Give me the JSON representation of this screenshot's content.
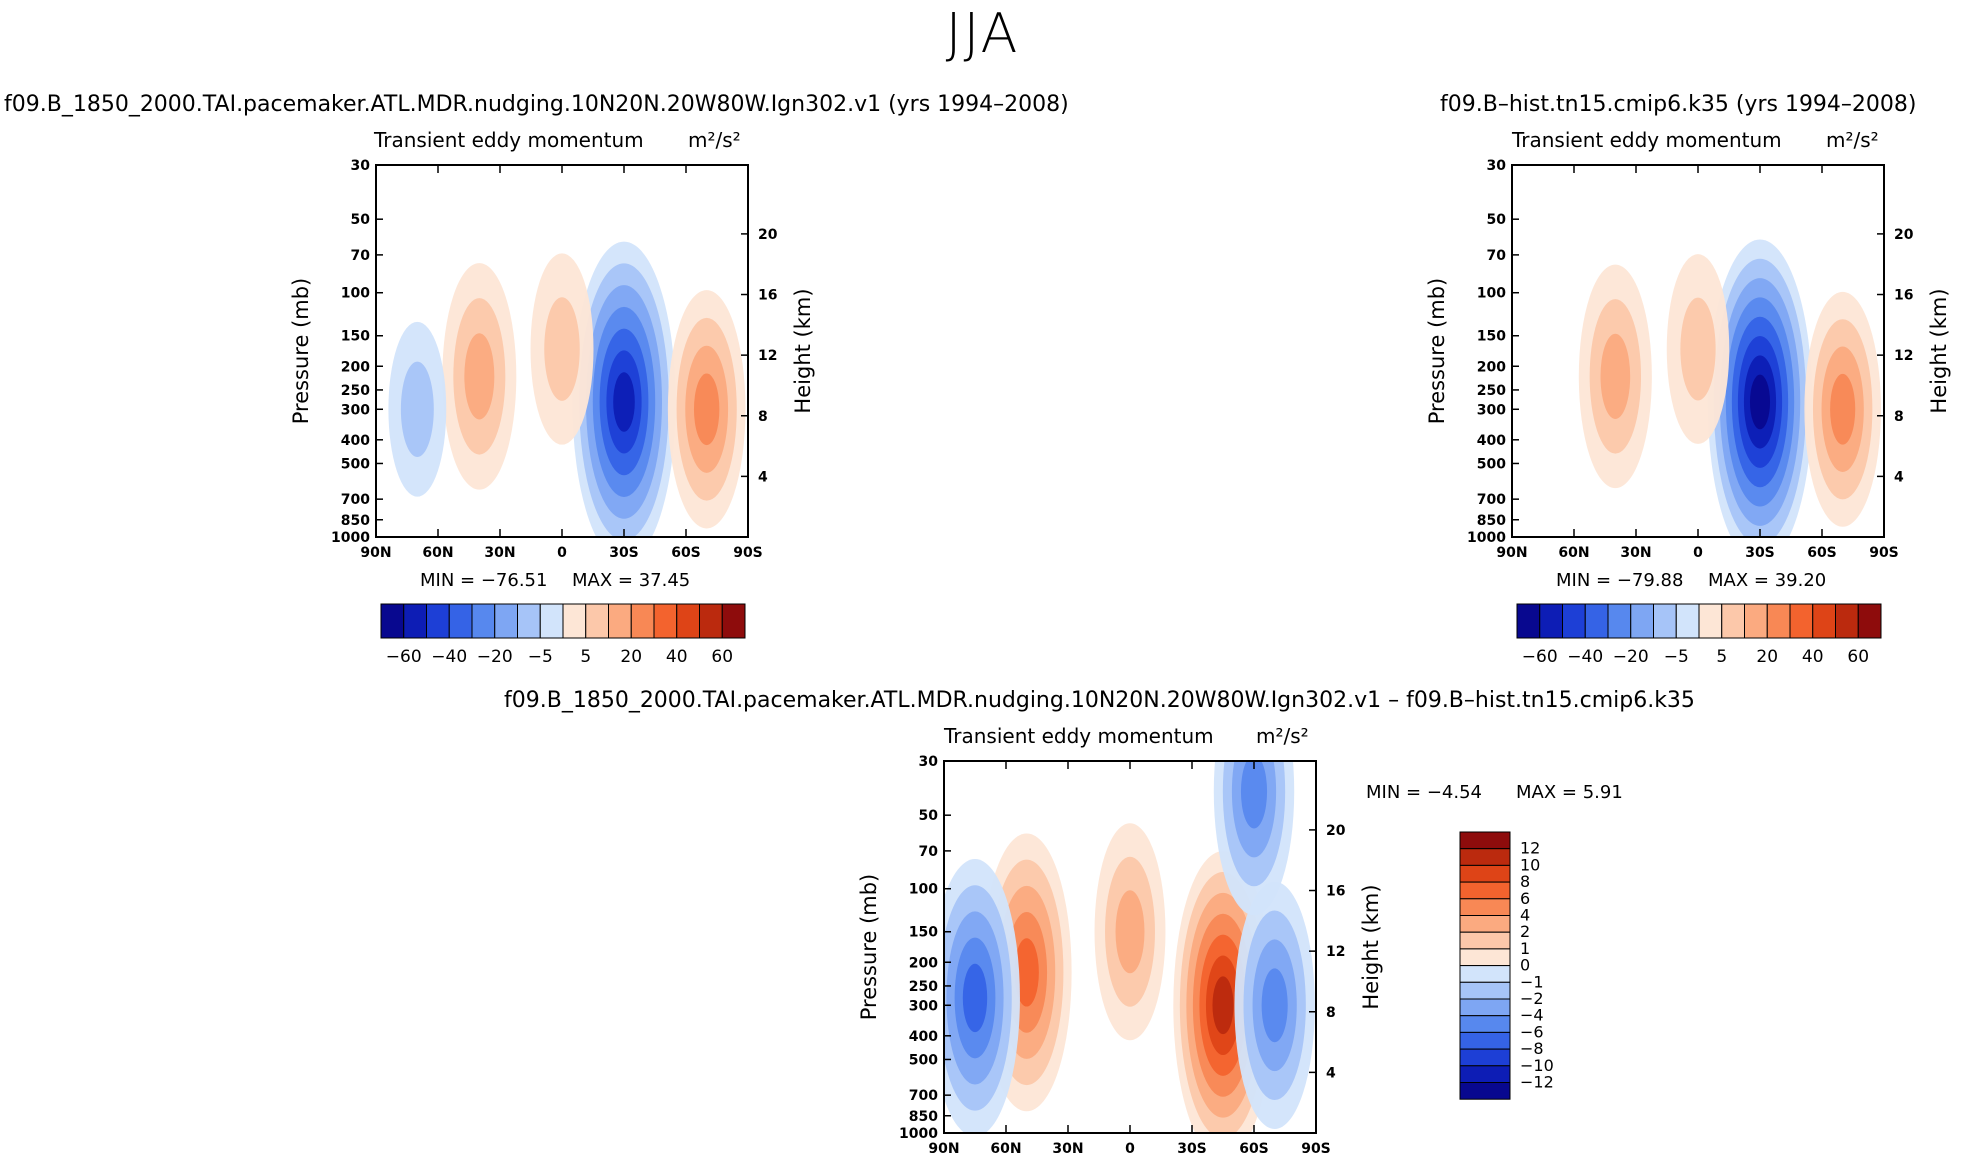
{
  "title": "JJA",
  "panels": {
    "left": {
      "title": "f09.B_1850_2000.TAI.pacemaker.ATL.MDR.nudging.10N20N.20W80W.Ign302.v1 (yrs 1994–2008)",
      "subtitle": "Transient eddy momentum",
      "units": "m²/s²",
      "min_text": "MIN = −76.51",
      "max_text": "MAX = 37.45"
    },
    "right": {
      "title": "f09.B–hist.tn15.cmip6.k35 (yrs 1994–2008)",
      "subtitle": "Transient eddy momentum",
      "units": "m²/s²",
      "min_text": "MIN = −79.88",
      "max_text": "MAX = 39.20"
    },
    "diff": {
      "title": "f09.B_1850_2000.TAI.pacemaker.ATL.MDR.nudging.10N20N.20W80W.Ign302.v1 – f09.B–hist.tn15.cmip6.k35",
      "subtitle": "Transient eddy momentum",
      "units": "m²/s²",
      "min_text": "MIN = −4.54",
      "max_text": "MAX = 5.91"
    }
  },
  "chart_data": [
    {
      "type": "heatmap",
      "panel": "left",
      "title": "Transient eddy momentum",
      "units": "m²/s²",
      "xlabel": "",
      "ylabel": "Pressure (mb)",
      "y2label": "Height (km)",
      "x_ticks": [
        "90N",
        "60N",
        "30N",
        "0",
        "30S",
        "60S",
        "90S"
      ],
      "y_ticks": [
        30,
        50,
        70,
        100,
        150,
        200,
        250,
        300,
        400,
        500,
        700,
        850,
        1000
      ],
      "y2_ticks": [
        20,
        16,
        12,
        8,
        4
      ],
      "ylim": [
        1000,
        30
      ],
      "min": -76.51,
      "max": 37.45,
      "colorbar_labels": [
        "−60",
        "−40",
        "−20",
        "−5",
        "5",
        "20",
        "40",
        "60"
      ],
      "features": [
        {
          "lat": -30,
          "p": 280,
          "value": -70
        },
        {
          "lat": 40,
          "p": 220,
          "value": 30
        },
        {
          "lat": -70,
          "p": 300,
          "value": 35
        },
        {
          "lat": 0,
          "p": 170,
          "value": 15
        },
        {
          "lat": 70,
          "p": 300,
          "value": -8
        }
      ]
    },
    {
      "type": "heatmap",
      "panel": "right",
      "title": "Transient eddy momentum",
      "units": "m²/s²",
      "xlabel": "",
      "ylabel": "Pressure (mb)",
      "y2label": "Height (km)",
      "x_ticks": [
        "90N",
        "60N",
        "30N",
        "0",
        "30S",
        "60S",
        "90S"
      ],
      "y_ticks": [
        30,
        50,
        70,
        100,
        150,
        200,
        250,
        300,
        400,
        500,
        700,
        850,
        1000
      ],
      "y2_ticks": [
        20,
        16,
        12,
        8,
        4
      ],
      "ylim": [
        1000,
        30
      ],
      "min": -79.88,
      "max": 39.2,
      "colorbar_labels": [
        "−60",
        "−40",
        "−20",
        "−5",
        "5",
        "20",
        "40",
        "60"
      ],
      "features": [
        {
          "lat": -30,
          "p": 280,
          "value": -75
        },
        {
          "lat": 40,
          "p": 220,
          "value": 30
        },
        {
          "lat": -70,
          "p": 300,
          "value": 35
        },
        {
          "lat": 0,
          "p": 170,
          "value": 15
        }
      ]
    },
    {
      "type": "heatmap",
      "panel": "diff",
      "title": "Transient eddy momentum",
      "units": "m²/s²",
      "xlabel": "",
      "ylabel": "Pressure (mb)",
      "y2label": "Height (km)",
      "x_ticks": [
        "90N",
        "60N",
        "30N",
        "0",
        "30S",
        "60S",
        "90S"
      ],
      "y_ticks": [
        30,
        50,
        70,
        100,
        150,
        200,
        250,
        300,
        400,
        500,
        700,
        850,
        1000
      ],
      "y2_ticks": [
        20,
        16,
        12,
        8,
        4
      ],
      "ylim": [
        1000,
        30
      ],
      "min": -4.54,
      "max": 5.91,
      "colorbar_labels": [
        "12",
        "10",
        "8",
        "6",
        "4",
        "2",
        "1",
        "0",
        "−1",
        "−2",
        "−4",
        "−6",
        "−8",
        "−10",
        "−12"
      ],
      "features": [
        {
          "lat": -45,
          "p": 300,
          "value": 5
        },
        {
          "lat": 50,
          "p": 220,
          "value": 4
        },
        {
          "lat": 75,
          "p": 280,
          "value": -4
        },
        {
          "lat": -70,
          "p": 300,
          "value": -3
        },
        {
          "lat": -60,
          "p": 40,
          "value": -3
        },
        {
          "lat": 0,
          "p": 150,
          "value": 2
        }
      ]
    }
  ],
  "colors": {
    "blues": [
      "#08088f",
      "#0d1db5",
      "#1d3fd6",
      "#3563e6",
      "#5788ee",
      "#7ea6f3",
      "#a6c4f8",
      "#d2e4fb"
    ],
    "reds": [
      "#fde6d6",
      "#fcc8aa",
      "#fbaa80",
      "#f88855",
      "#f3632e",
      "#de4417",
      "#bb2a0e",
      "#8e0c0c"
    ]
  }
}
